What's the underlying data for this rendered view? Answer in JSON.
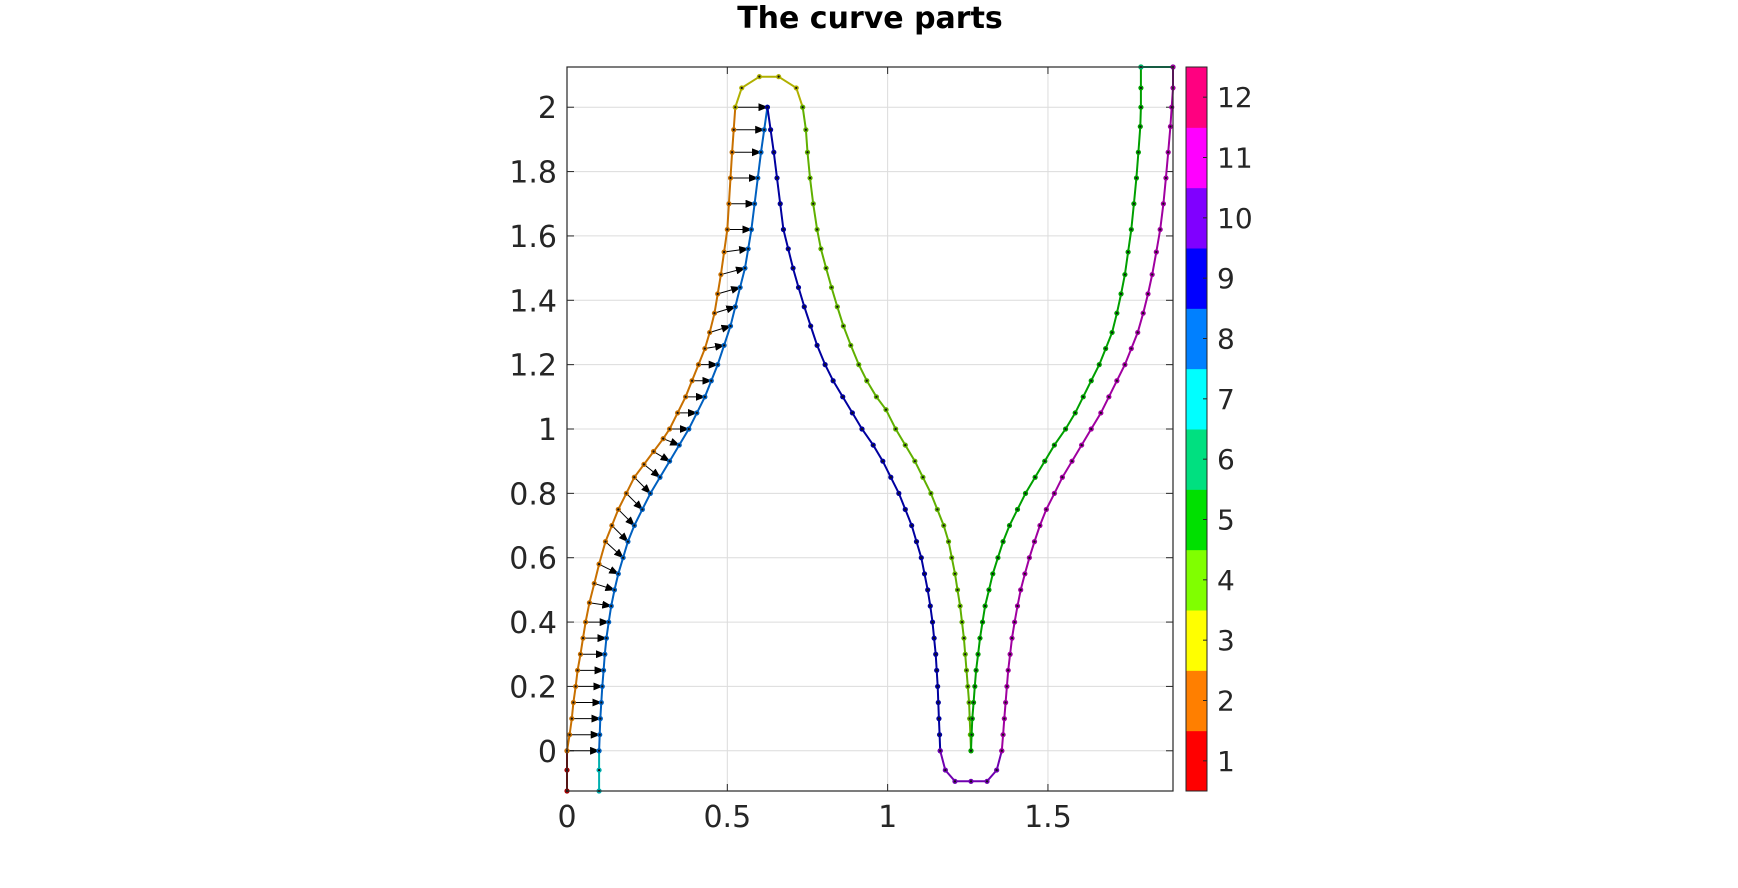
{
  "chart_data": {
    "type": "line",
    "title": "The curve parts",
    "xlabel": "",
    "ylabel": "",
    "xlim": [
      0,
      1.89
    ],
    "ylim": [
      -0.125,
      2.125
    ],
    "xticks": [
      0,
      0.5,
      1,
      1.5
    ],
    "xtick_labels": [
      "0",
      "0.5",
      "1",
      "1.5"
    ],
    "yticks": [
      0,
      0.2,
      0.4,
      0.6,
      0.8,
      1,
      1.2,
      1.4,
      1.6,
      1.8,
      2
    ],
    "ytick_labels": [
      "0",
      "0.2",
      "0.4",
      "0.6",
      "0.8",
      "1",
      "1.2",
      "1.4",
      "1.6",
      "1.8",
      "2"
    ],
    "grid": true,
    "colorbar": {
      "labels": [
        "1",
        "2",
        "3",
        "4",
        "5",
        "6",
        "7",
        "8",
        "9",
        "10",
        "11",
        "12"
      ],
      "colors": [
        "#ff0000",
        "#ff7f00",
        "#ffff00",
        "#80ff00",
        "#00e000",
        "#00e080",
        "#00ffff",
        "#0080ff",
        "#0000ff",
        "#8000ff",
        "#ff00ff",
        "#ff0080"
      ]
    },
    "series": [
      {
        "part": 1,
        "color": "#a00000",
        "points": [
          [
            0.0,
            -0.125
          ],
          [
            0.0,
            -0.06
          ],
          [
            0.0,
            0.0
          ]
        ]
      },
      {
        "part": 2,
        "color": "#c87000",
        "points": [
          [
            0.0,
            0.0
          ],
          [
            0.008,
            0.05
          ],
          [
            0.015,
            0.1
          ],
          [
            0.02,
            0.15
          ],
          [
            0.027,
            0.2
          ],
          [
            0.033,
            0.25
          ],
          [
            0.042,
            0.3
          ],
          [
            0.05,
            0.35
          ],
          [
            0.058,
            0.4
          ],
          [
            0.07,
            0.46
          ],
          [
            0.085,
            0.52
          ],
          [
            0.1,
            0.58
          ],
          [
            0.12,
            0.65
          ],
          [
            0.14,
            0.7
          ],
          [
            0.16,
            0.75
          ],
          [
            0.185,
            0.8
          ],
          [
            0.21,
            0.85
          ],
          [
            0.24,
            0.89
          ],
          [
            0.27,
            0.93
          ],
          [
            0.3,
            0.97
          ],
          [
            0.32,
            1.0
          ],
          [
            0.345,
            1.05
          ],
          [
            0.37,
            1.1
          ],
          [
            0.39,
            1.15
          ],
          [
            0.41,
            1.2
          ],
          [
            0.43,
            1.25
          ],
          [
            0.445,
            1.3
          ],
          [
            0.46,
            1.36
          ],
          [
            0.47,
            1.42
          ],
          [
            0.48,
            1.48
          ],
          [
            0.49,
            1.55
          ],
          [
            0.5,
            1.62
          ],
          [
            0.505,
            1.7
          ],
          [
            0.51,
            1.78
          ],
          [
            0.515,
            1.86
          ],
          [
            0.52,
            1.93
          ],
          [
            0.525,
            2.0
          ]
        ]
      },
      {
        "part": 3,
        "color": "#b0b000",
        "points": [
          [
            0.525,
            2.0
          ],
          [
            0.545,
            2.06
          ],
          [
            0.6,
            2.095
          ],
          [
            0.66,
            2.095
          ],
          [
            0.715,
            2.06
          ],
          [
            0.735,
            2.0
          ]
        ]
      },
      {
        "part": 4,
        "color": "#60b000",
        "points": [
          [
            0.735,
            2.0
          ],
          [
            0.745,
            1.93
          ],
          [
            0.75,
            1.86
          ],
          [
            0.758,
            1.78
          ],
          [
            0.768,
            1.7
          ],
          [
            0.78,
            1.62
          ],
          [
            0.792,
            1.56
          ],
          [
            0.808,
            1.5
          ],
          [
            0.825,
            1.44
          ],
          [
            0.843,
            1.38
          ],
          [
            0.862,
            1.32
          ],
          [
            0.885,
            1.26
          ],
          [
            0.91,
            1.2
          ],
          [
            0.935,
            1.15
          ],
          [
            0.965,
            1.1
          ],
          [
            0.995,
            1.06
          ],
          [
            1.025,
            1.0
          ],
          [
            1.055,
            0.95
          ],
          [
            1.085,
            0.9
          ],
          [
            1.11,
            0.85
          ],
          [
            1.135,
            0.8
          ],
          [
            1.155,
            0.75
          ],
          [
            1.175,
            0.7
          ],
          [
            1.19,
            0.65
          ],
          [
            1.2,
            0.6
          ],
          [
            1.21,
            0.55
          ],
          [
            1.218,
            0.5
          ],
          [
            1.226,
            0.45
          ],
          [
            1.232,
            0.4
          ],
          [
            1.238,
            0.35
          ],
          [
            1.242,
            0.3
          ],
          [
            1.246,
            0.25
          ],
          [
            1.25,
            0.2
          ],
          [
            1.254,
            0.15
          ],
          [
            1.256,
            0.1
          ],
          [
            1.258,
            0.05
          ],
          [
            1.26,
            0.0
          ]
        ]
      },
      {
        "part": 5,
        "color": "#00a000",
        "points": [
          [
            1.26,
            0.0
          ],
          [
            1.262,
            0.05
          ],
          [
            1.264,
            0.1
          ],
          [
            1.268,
            0.15
          ],
          [
            1.272,
            0.2
          ],
          [
            1.276,
            0.25
          ],
          [
            1.282,
            0.3
          ],
          [
            1.288,
            0.35
          ],
          [
            1.296,
            0.4
          ],
          [
            1.304,
            0.45
          ],
          [
            1.316,
            0.5
          ],
          [
            1.328,
            0.55
          ],
          [
            1.344,
            0.6
          ],
          [
            1.36,
            0.65
          ],
          [
            1.38,
            0.7
          ],
          [
            1.405,
            0.75
          ],
          [
            1.43,
            0.8
          ],
          [
            1.46,
            0.85
          ],
          [
            1.49,
            0.9
          ],
          [
            1.52,
            0.95
          ],
          [
            1.555,
            1.0
          ],
          [
            1.585,
            1.05
          ],
          [
            1.61,
            1.1
          ],
          [
            1.635,
            1.15
          ],
          [
            1.66,
            1.2
          ],
          [
            1.68,
            1.25
          ],
          [
            1.7,
            1.3
          ],
          [
            1.715,
            1.36
          ],
          [
            1.728,
            1.42
          ],
          [
            1.74,
            1.48
          ],
          [
            1.75,
            1.55
          ],
          [
            1.76,
            1.62
          ],
          [
            1.768,
            1.7
          ],
          [
            1.776,
            1.78
          ],
          [
            1.782,
            1.86
          ],
          [
            1.788,
            1.94
          ],
          [
            1.79,
            2.0
          ],
          [
            1.79,
            2.06
          ],
          [
            1.79,
            2.125
          ]
        ]
      },
      {
        "part": 6,
        "color": "#00b070",
        "points": [
          [
            1.79,
            2.125
          ],
          [
            1.89,
            2.125
          ]
        ]
      },
      {
        "part": 7,
        "color": "#00b0b0",
        "points": [
          [
            0.1,
            -0.125
          ],
          [
            0.1,
            -0.06
          ],
          [
            0.1,
            0.0
          ]
        ]
      },
      {
        "part": 8,
        "color": "#0060c0",
        "points": [
          [
            0.1,
            0.0
          ],
          [
            0.102,
            0.05
          ],
          [
            0.104,
            0.1
          ],
          [
            0.107,
            0.15
          ],
          [
            0.11,
            0.2
          ],
          [
            0.114,
            0.25
          ],
          [
            0.118,
            0.3
          ],
          [
            0.123,
            0.35
          ],
          [
            0.13,
            0.4
          ],
          [
            0.138,
            0.45
          ],
          [
            0.148,
            0.5
          ],
          [
            0.16,
            0.55
          ],
          [
            0.175,
            0.6
          ],
          [
            0.19,
            0.65
          ],
          [
            0.21,
            0.7
          ],
          [
            0.235,
            0.75
          ],
          [
            0.26,
            0.8
          ],
          [
            0.29,
            0.85
          ],
          [
            0.32,
            0.9
          ],
          [
            0.35,
            0.95
          ],
          [
            0.38,
            1.0
          ],
          [
            0.405,
            1.05
          ],
          [
            0.43,
            1.1
          ],
          [
            0.45,
            1.15
          ],
          [
            0.47,
            1.2
          ],
          [
            0.49,
            1.26
          ],
          [
            0.51,
            1.32
          ],
          [
            0.525,
            1.38
          ],
          [
            0.54,
            1.44
          ],
          [
            0.555,
            1.5
          ],
          [
            0.565,
            1.56
          ],
          [
            0.575,
            1.62
          ],
          [
            0.585,
            1.7
          ],
          [
            0.595,
            1.78
          ],
          [
            0.605,
            1.86
          ],
          [
            0.615,
            1.93
          ],
          [
            0.625,
            2.0
          ]
        ]
      },
      {
        "part": 9,
        "color": "#0000a0",
        "points": [
          [
            0.625,
            2.0
          ],
          [
            0.635,
            1.93
          ],
          [
            0.645,
            1.86
          ],
          [
            0.655,
            1.78
          ],
          [
            0.665,
            1.7
          ],
          [
            0.675,
            1.62
          ],
          [
            0.69,
            1.56
          ],
          [
            0.705,
            1.5
          ],
          [
            0.722,
            1.44
          ],
          [
            0.74,
            1.38
          ],
          [
            0.76,
            1.32
          ],
          [
            0.78,
            1.26
          ],
          [
            0.805,
            1.2
          ],
          [
            0.83,
            1.15
          ],
          [
            0.86,
            1.1
          ],
          [
            0.89,
            1.05
          ],
          [
            0.92,
            1.0
          ],
          [
            0.955,
            0.95
          ],
          [
            0.985,
            0.9
          ],
          [
            1.01,
            0.85
          ],
          [
            1.035,
            0.8
          ],
          [
            1.055,
            0.75
          ],
          [
            1.075,
            0.7
          ],
          [
            1.09,
            0.65
          ],
          [
            1.105,
            0.6
          ],
          [
            1.115,
            0.55
          ],
          [
            1.125,
            0.5
          ],
          [
            1.133,
            0.45
          ],
          [
            1.14,
            0.4
          ],
          [
            1.145,
            0.35
          ],
          [
            1.15,
            0.3
          ],
          [
            1.153,
            0.25
          ],
          [
            1.156,
            0.2
          ],
          [
            1.158,
            0.15
          ],
          [
            1.16,
            0.1
          ],
          [
            1.162,
            0.05
          ],
          [
            1.164,
            0.0
          ]
        ]
      },
      {
        "part": 10,
        "color": "#7000b0",
        "points": [
          [
            1.164,
            0.0
          ],
          [
            1.18,
            -0.06
          ],
          [
            1.21,
            -0.095
          ],
          [
            1.26,
            -0.095
          ],
          [
            1.31,
            -0.095
          ],
          [
            1.34,
            -0.06
          ],
          [
            1.356,
            0.0
          ]
        ]
      },
      {
        "part": 11,
        "color": "#a000a0",
        "points": [
          [
            1.356,
            0.0
          ],
          [
            1.36,
            0.05
          ],
          [
            1.364,
            0.1
          ],
          [
            1.368,
            0.15
          ],
          [
            1.372,
            0.2
          ],
          [
            1.376,
            0.25
          ],
          [
            1.382,
            0.3
          ],
          [
            1.388,
            0.35
          ],
          [
            1.396,
            0.4
          ],
          [
            1.405,
            0.45
          ],
          [
            1.415,
            0.5
          ],
          [
            1.428,
            0.55
          ],
          [
            1.442,
            0.6
          ],
          [
            1.458,
            0.65
          ],
          [
            1.475,
            0.7
          ],
          [
            1.495,
            0.75
          ],
          [
            1.52,
            0.8
          ],
          [
            1.545,
            0.85
          ],
          [
            1.575,
            0.9
          ],
          [
            1.605,
            0.95
          ],
          [
            1.635,
            1.0
          ],
          [
            1.665,
            1.05
          ],
          [
            1.69,
            1.1
          ],
          [
            1.715,
            1.15
          ],
          [
            1.74,
            1.2
          ],
          [
            1.76,
            1.25
          ],
          [
            1.78,
            1.3
          ],
          [
            1.797,
            1.36
          ],
          [
            1.812,
            1.42
          ],
          [
            1.825,
            1.48
          ],
          [
            1.838,
            1.55
          ],
          [
            1.85,
            1.62
          ],
          [
            1.86,
            1.7
          ],
          [
            1.868,
            1.78
          ],
          [
            1.875,
            1.86
          ],
          [
            1.882,
            1.94
          ],
          [
            1.886,
            2.0
          ],
          [
            1.89,
            2.06
          ],
          [
            1.89,
            2.125
          ]
        ]
      }
    ]
  }
}
